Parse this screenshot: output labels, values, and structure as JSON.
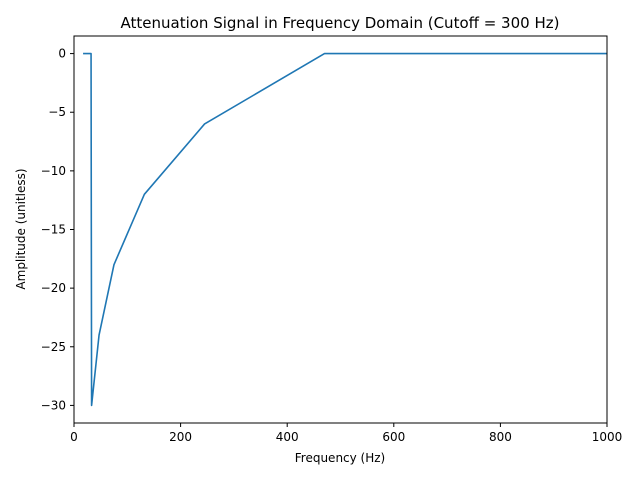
{
  "chart_data": {
    "type": "line",
    "title": "Attenuation Signal in Frequency Domain (Cutoff = 300 Hz)",
    "xlabel": "Frequency (Hz)",
    "ylabel": "Amplitude (unitless)",
    "xlim": [
      0,
      1000
    ],
    "ylim": [
      -31.5,
      1.5
    ],
    "xticks": [
      0,
      200,
      400,
      600,
      800,
      1000
    ],
    "xtick_labels": [
      "0",
      "200",
      "400",
      "600",
      "800",
      "1000"
    ],
    "yticks": [
      0,
      -5,
      -10,
      -15,
      -20,
      -25,
      -30
    ],
    "ytick_labels": [
      "0",
      "−5",
      "−10",
      "−15",
      "−20",
      "−25",
      "−30"
    ],
    "grid": false,
    "series": [
      {
        "color": "#1f77b4",
        "x": [
          17,
          32,
          32.5,
          33,
          47,
          75,
          132,
          245,
          470,
          1000
        ],
        "y": [
          0,
          0,
          -15,
          -30,
          -24,
          -18,
          -12,
          -6,
          0,
          0
        ]
      }
    ]
  }
}
